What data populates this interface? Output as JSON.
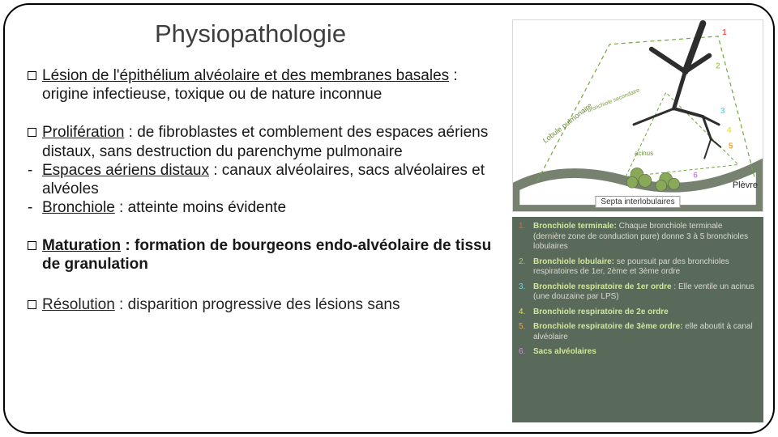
{
  "title": "Physiopathologie",
  "sections": {
    "lesion": {
      "lead": "Lésion de l'épithélium alvéolaire et des membranes basales",
      "rest": " : origine infectieuse, toxique ou de nature inconnue"
    },
    "prolif": {
      "lead": "Prolifération",
      "rest": " : de fibroblastes et comblement des espaces aériens distaux, sans destruction du parenchyme pulmonaire",
      "dash1_lead": "Espaces aériens distaux",
      "dash1_rest": " : canaux alvéolaires, sacs alvéolaires et alvéoles",
      "dash2_lead": "Bronchiole",
      "dash2_rest": " : atteinte moins évidente"
    },
    "maturation": {
      "lead": "Maturation",
      "rest": " : formation de bourgeons endo-alvéolaire de tissu de granulation"
    },
    "resolution": {
      "lead": "Résolution",
      "rest": " : disparition progressive des lésions sans"
    }
  },
  "diagram": {
    "caption": "Septa interlobulaires",
    "pleura": "Plèvre",
    "lobule": "Lobule pulmonaire",
    "acinus": "acinus",
    "bronch": "bronchiole secondaire",
    "num_colors": [
      "#f05a56",
      "#a3d25b",
      "#70d6e0",
      "#f2df4d",
      "#f0a030",
      "#c78fd9"
    ],
    "vein_color": "#5f6b57",
    "tree_color": "#2d2d2d",
    "lobule_border": "#6fa83a",
    "acinus_border": "#6fa83a",
    "alveoli_fill": "#8aa85a"
  },
  "legend": {
    "bg": "#5a6a5a",
    "items": [
      {
        "n": "1.",
        "title": "Bronchiole terminale:",
        "body": " Chaque bronchiole terminale (dernière zone de conduction pure) donne 3 à 5 bronchioles lobulaires"
      },
      {
        "n": "2.",
        "title": "Bronchiole lobulaire:",
        "body": " se poursuit par des bronchioles respiratoires de 1er, 2ème et 3ème ordre"
      },
      {
        "n": "3.",
        "title": "Bronchiole respiratoire de 1er ordre",
        "body": " : Elle ventile un acinus (une douzaine par LPS)"
      },
      {
        "n": "4.",
        "title": "Bronchiole respiratoire de 2e ordre",
        "body": ""
      },
      {
        "n": "5.",
        "title": "Bronchiole respiratoire de 3ème ordre:",
        "body": " elle aboutit à canal alvéolaire"
      },
      {
        "n": "6.",
        "title": "Sacs alvéolaires",
        "body": ""
      }
    ]
  }
}
